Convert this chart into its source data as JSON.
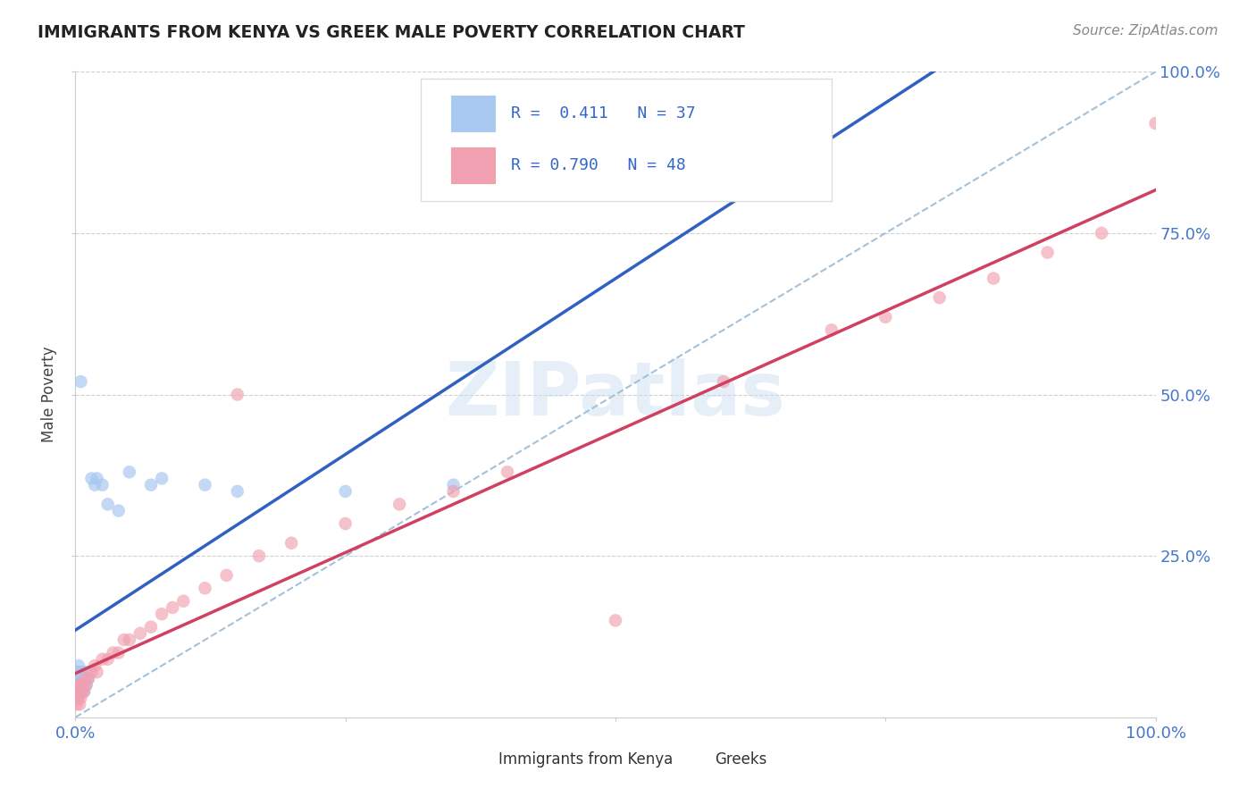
{
  "title": "IMMIGRANTS FROM KENYA VS GREEK MALE POVERTY CORRELATION CHART",
  "source": "Source: ZipAtlas.com",
  "ylabel": "Male Poverty",
  "legend_label1": "Immigrants from Kenya",
  "legend_label2": "Greeks",
  "blue_color": "#a8c8f0",
  "pink_color": "#f0a0b0",
  "blue_line_color": "#3060c0",
  "pink_line_color": "#d04060",
  "ref_line_color": "#9bbbd4",
  "watermark": "ZIPatlas",
  "blue_x": [
    0.001,
    0.001,
    0.002,
    0.002,
    0.002,
    0.003,
    0.003,
    0.003,
    0.003,
    0.004,
    0.004,
    0.005,
    0.005,
    0.006,
    0.006,
    0.007,
    0.007,
    0.008,
    0.008,
    0.009,
    0.01,
    0.01,
    0.012,
    0.015,
    0.018,
    0.02,
    0.025,
    0.03,
    0.04,
    0.05,
    0.07,
    0.08,
    0.12,
    0.15,
    0.25,
    0.35,
    0.005
  ],
  "blue_y": [
    0.04,
    0.05,
    0.05,
    0.06,
    0.07,
    0.04,
    0.06,
    0.07,
    0.08,
    0.05,
    0.07,
    0.05,
    0.06,
    0.04,
    0.06,
    0.05,
    0.07,
    0.04,
    0.06,
    0.05,
    0.05,
    0.07,
    0.06,
    0.37,
    0.36,
    0.37,
    0.36,
    0.33,
    0.32,
    0.38,
    0.36,
    0.37,
    0.36,
    0.35,
    0.35,
    0.36,
    0.52
  ],
  "pink_x": [
    0.001,
    0.001,
    0.002,
    0.002,
    0.003,
    0.003,
    0.004,
    0.004,
    0.005,
    0.005,
    0.006,
    0.007,
    0.008,
    0.009,
    0.01,
    0.012,
    0.015,
    0.018,
    0.02,
    0.025,
    0.03,
    0.035,
    0.04,
    0.045,
    0.05,
    0.06,
    0.07,
    0.08,
    0.09,
    0.1,
    0.12,
    0.14,
    0.17,
    0.2,
    0.25,
    0.3,
    0.35,
    0.4,
    0.5,
    0.6,
    0.7,
    0.75,
    0.8,
    0.85,
    0.9,
    0.95,
    1.0,
    0.15
  ],
  "pink_y": [
    0.02,
    0.03,
    0.03,
    0.04,
    0.03,
    0.05,
    0.02,
    0.04,
    0.03,
    0.05,
    0.04,
    0.05,
    0.04,
    0.06,
    0.05,
    0.06,
    0.07,
    0.08,
    0.07,
    0.09,
    0.09,
    0.1,
    0.1,
    0.12,
    0.12,
    0.13,
    0.14,
    0.16,
    0.17,
    0.18,
    0.2,
    0.22,
    0.25,
    0.27,
    0.3,
    0.33,
    0.35,
    0.38,
    0.15,
    0.52,
    0.6,
    0.62,
    0.65,
    0.68,
    0.72,
    0.75,
    0.92,
    0.5
  ],
  "xlim": [
    0,
    1
  ],
  "ylim": [
    0,
    1.0
  ],
  "xtick_positions": [
    0,
    0.25,
    0.5,
    0.75,
    1.0
  ],
  "ytick_positions": [
    0.25,
    0.5,
    0.75,
    1.0
  ],
  "xticklabels": [
    "0.0%",
    "",
    "",
    "",
    "100.0%"
  ],
  "yticklabels": [
    "25.0%",
    "50.0%",
    "75.0%",
    "100.0%"
  ]
}
